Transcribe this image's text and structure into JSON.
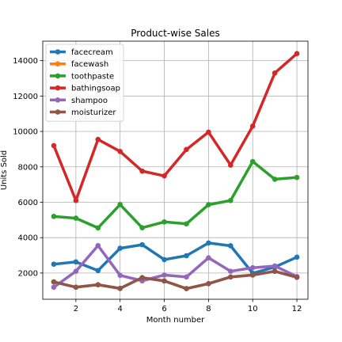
{
  "chart_data": {
    "type": "line",
    "title": "Product-wise Sales",
    "xlabel": "Month number",
    "ylabel": "Units Sold",
    "x": [
      1,
      2,
      3,
      4,
      5,
      6,
      7,
      8,
      9,
      10,
      11,
      12
    ],
    "xlim": [
      0.5,
      12.5
    ],
    "ylim": [
      520,
      15100
    ],
    "xticks": [
      2,
      4,
      6,
      8,
      10,
      12
    ],
    "yticks": [
      2000,
      4000,
      6000,
      8000,
      10000,
      12000,
      14000
    ],
    "grid": true,
    "legend": "top-left",
    "series": [
      {
        "name": "facecream",
        "color": "#1f77b4",
        "values": [
          2500,
          2630,
          2140,
          3400,
          3600,
          2760,
          2980,
          3700,
          3540,
          1990,
          2340,
          2900
        ]
      },
      {
        "name": "facewash",
        "color": "#ff7f0e",
        "values": [
          1500,
          1200,
          1340,
          1130,
          1740,
          1555,
          1120,
          1400,
          1780,
          1890,
          2100,
          1760
        ]
      },
      {
        "name": "toothpaste",
        "color": "#2ca02c",
        "values": [
          5200,
          5100,
          4550,
          5870,
          4560,
          4890,
          4780,
          5860,
          6100,
          8300,
          7300,
          7400
        ]
      },
      {
        "name": "bathingsoap",
        "color": "#d62728",
        "values": [
          9200,
          6100,
          9550,
          8870,
          7760,
          7490,
          8980,
          9960,
          8100,
          10300,
          13300,
          14400
        ]
      },
      {
        "name": "shampoo",
        "color": "#9467bd",
        "values": [
          1200,
          2100,
          3550,
          1870,
          1560,
          1890,
          1780,
          2860,
          2100,
          2300,
          2400,
          1800
        ]
      },
      {
        "name": "moisturizer",
        "color": "#8c564b",
        "values": [
          1500,
          1200,
          1340,
          1130,
          1740,
          1555,
          1120,
          1400,
          1780,
          1890,
          2100,
          1760
        ]
      }
    ]
  }
}
